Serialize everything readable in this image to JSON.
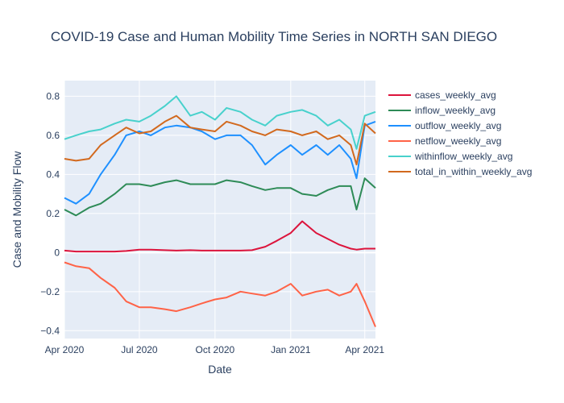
{
  "chart_data": {
    "type": "line",
    "title": "COVID-19 Case and Human Mobility Time Series in NORTH SAN DIEGO",
    "xlabel": "Date",
    "ylabel": "Case and Mobility Flow",
    "x_range": [
      "2020-04-01",
      "2021-04-14"
    ],
    "ylim": [
      -0.44,
      0.88
    ],
    "x_ticks": [
      {
        "date": "2020-04-01",
        "label": "Apr 2020"
      },
      {
        "date": "2020-07-01",
        "label": "Jul 2020"
      },
      {
        "date": "2020-10-01",
        "label": "Oct 2020"
      },
      {
        "date": "2021-01-01",
        "label": "Jan 2021"
      },
      {
        "date": "2021-04-01",
        "label": "Apr 2021"
      }
    ],
    "y_ticks": [
      {
        "value": 0.8,
        "label": "0.8"
      },
      {
        "value": 0.6,
        "label": "0.6"
      },
      {
        "value": 0.4,
        "label": "0.4"
      },
      {
        "value": 0.2,
        "label": "0.2"
      },
      {
        "value": 0,
        "label": "0"
      },
      {
        "value": -0.2,
        "label": "−0.2"
      },
      {
        "value": -0.4,
        "label": "−0.4"
      }
    ],
    "grid": true,
    "legend_position": "right",
    "plot_background": "#e5ecf6",
    "x": [
      "2020-04-01",
      "2020-04-15",
      "2020-05-01",
      "2020-05-15",
      "2020-06-01",
      "2020-06-15",
      "2020-07-01",
      "2020-07-15",
      "2020-08-01",
      "2020-08-15",
      "2020-09-01",
      "2020-09-15",
      "2020-10-01",
      "2020-10-15",
      "2020-11-01",
      "2020-11-15",
      "2020-12-01",
      "2020-12-15",
      "2021-01-01",
      "2021-01-15",
      "2021-02-01",
      "2021-02-15",
      "2021-03-01",
      "2021-03-15",
      "2021-03-22",
      "2021-04-01",
      "2021-04-14"
    ],
    "series": [
      {
        "name": "cases_weekly_avg",
        "color": "#dc143c",
        "values": [
          0.01,
          0.005,
          0.005,
          0.005,
          0.005,
          0.008,
          0.015,
          0.015,
          0.012,
          0.01,
          0.012,
          0.01,
          0.01,
          0.01,
          0.01,
          0.012,
          0.03,
          0.06,
          0.1,
          0.16,
          0.1,
          0.07,
          0.04,
          0.02,
          0.015,
          0.02,
          0.02
        ]
      },
      {
        "name": "inflow_weekly_avg",
        "color": "#2e8b57",
        "values": [
          0.22,
          0.19,
          0.23,
          0.25,
          0.3,
          0.35,
          0.35,
          0.34,
          0.36,
          0.37,
          0.35,
          0.35,
          0.35,
          0.37,
          0.36,
          0.34,
          0.32,
          0.33,
          0.33,
          0.3,
          0.29,
          0.32,
          0.34,
          0.34,
          0.22,
          0.38,
          0.33
        ]
      },
      {
        "name": "outflow_weekly_avg",
        "color": "#1e90ff",
        "values": [
          0.28,
          0.25,
          0.3,
          0.4,
          0.5,
          0.6,
          0.62,
          0.6,
          0.64,
          0.65,
          0.64,
          0.62,
          0.58,
          0.6,
          0.6,
          0.55,
          0.45,
          0.5,
          0.55,
          0.5,
          0.55,
          0.5,
          0.55,
          0.48,
          0.38,
          0.65,
          0.67
        ]
      },
      {
        "name": "netflow_weekly_avg",
        "color": "#ff6347",
        "values": [
          -0.05,
          -0.07,
          -0.08,
          -0.13,
          -0.18,
          -0.25,
          -0.28,
          -0.28,
          -0.29,
          -0.3,
          -0.28,
          -0.26,
          -0.24,
          -0.23,
          -0.2,
          -0.21,
          -0.22,
          -0.2,
          -0.16,
          -0.22,
          -0.2,
          -0.19,
          -0.22,
          -0.2,
          -0.16,
          -0.25,
          -0.38
        ]
      },
      {
        "name": "withinflow_weekly_avg",
        "color": "#48d1cc",
        "values": [
          0.58,
          0.6,
          0.62,
          0.63,
          0.66,
          0.68,
          0.67,
          0.7,
          0.75,
          0.8,
          0.7,
          0.72,
          0.68,
          0.74,
          0.72,
          0.68,
          0.65,
          0.7,
          0.72,
          0.73,
          0.7,
          0.65,
          0.68,
          0.63,
          0.53,
          0.7,
          0.72
        ]
      },
      {
        "name": "total_in_within_weekly_avg",
        "color": "#d2691e",
        "values": [
          0.48,
          0.47,
          0.48,
          0.55,
          0.6,
          0.64,
          0.61,
          0.62,
          0.67,
          0.7,
          0.64,
          0.63,
          0.62,
          0.67,
          0.65,
          0.62,
          0.6,
          0.63,
          0.62,
          0.6,
          0.62,
          0.58,
          0.6,
          0.55,
          0.45,
          0.66,
          0.61
        ]
      }
    ]
  }
}
